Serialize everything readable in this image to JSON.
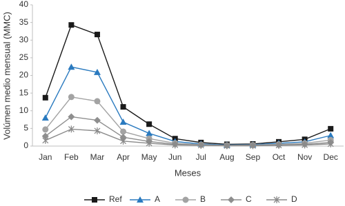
{
  "chart_data": {
    "type": "line",
    "x_label": "Meses",
    "y_label": "Volúmen medio mensual (MMC)",
    "categories": [
      "Jan",
      "Feb",
      "Mar",
      "Apr",
      "May",
      "Jun",
      "Jul",
      "Aug",
      "Sep",
      "Oct",
      "Nov",
      "Dec"
    ],
    "series": [
      {
        "name": "Ref",
        "color": "#1a1a1a",
        "marker": "square",
        "values": [
          13.7,
          34.3,
          31.6,
          11.1,
          6.2,
          2.1,
          1.0,
          0.5,
          0.6,
          1.2,
          1.9,
          4.9
        ]
      },
      {
        "name": "A",
        "color": "#2a7abf",
        "marker": "triangle",
        "values": [
          8.0,
          22.4,
          20.9,
          6.8,
          3.6,
          1.3,
          0.6,
          0.3,
          0.4,
          0.8,
          1.2,
          3.0
        ]
      },
      {
        "name": "B",
        "color": "#a3a3a3",
        "marker": "circle",
        "values": [
          4.7,
          13.9,
          12.7,
          4.1,
          2.1,
          0.8,
          0.4,
          0.2,
          0.3,
          0.5,
          0.8,
          1.7
        ]
      },
      {
        "name": "C",
        "color": "#8e8e8e",
        "marker": "diamond",
        "values": [
          2.8,
          8.3,
          7.3,
          2.5,
          1.3,
          0.5,
          0.3,
          0.1,
          0.2,
          0.3,
          0.5,
          1.0
        ]
      },
      {
        "name": "D",
        "color": "#8a8a8a",
        "marker": "star",
        "values": [
          1.6,
          4.8,
          4.3,
          1.4,
          0.8,
          0.3,
          0.2,
          0.1,
          0.1,
          0.2,
          0.3,
          0.6
        ]
      }
    ],
    "ylim": [
      0,
      40
    ],
    "yticks": [
      0,
      5,
      10,
      15,
      20,
      25,
      30,
      35,
      40
    ],
    "grid": false,
    "legend": "bottom"
  }
}
